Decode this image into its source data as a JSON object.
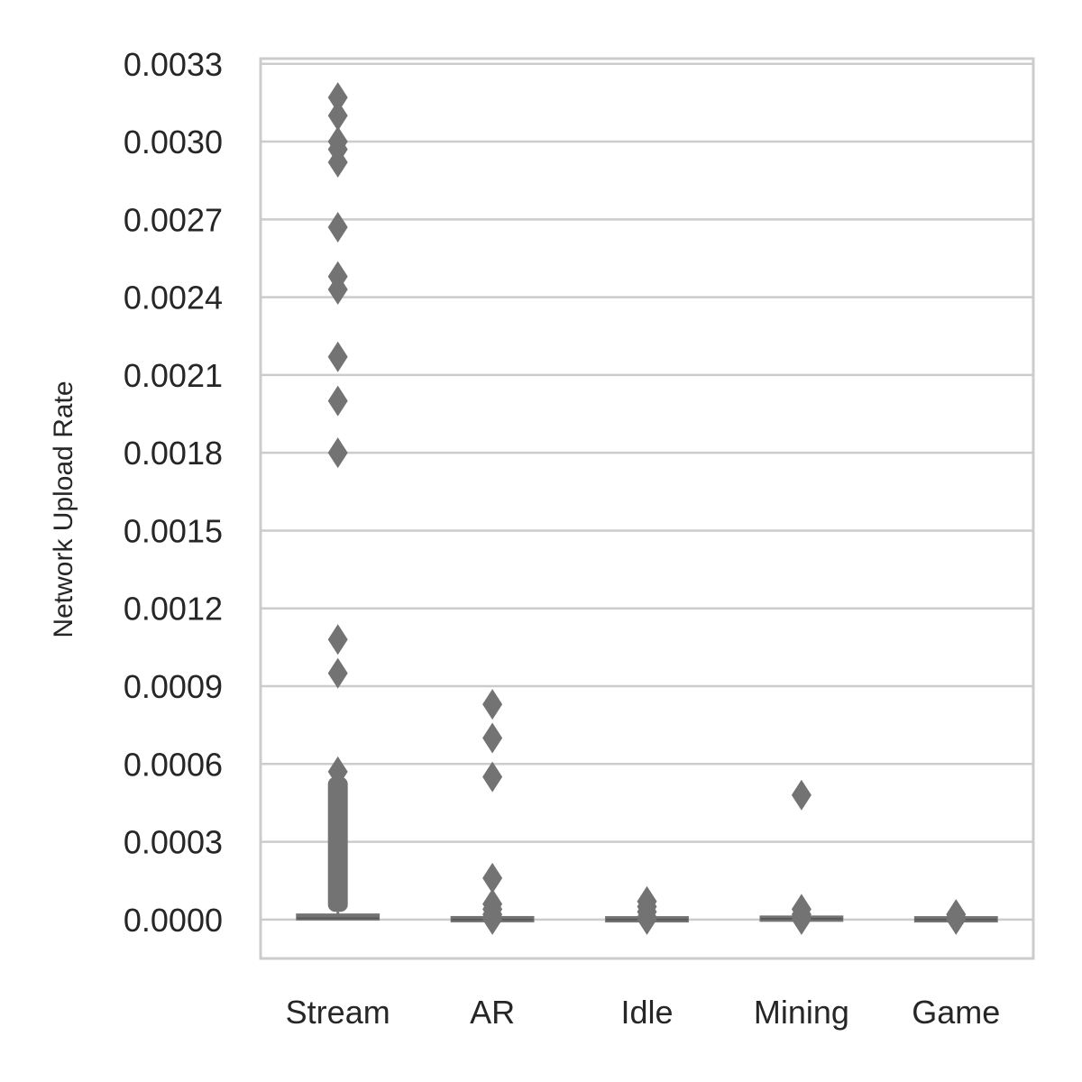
{
  "chart_data": {
    "type": "box",
    "title": "",
    "xlabel": "",
    "ylabel": "Network Upload Rate",
    "ylim": [
      -0.00015,
      0.00332
    ],
    "yticks": [
      0.0,
      0.0003,
      0.0006,
      0.0009,
      0.0012,
      0.0015,
      0.0018,
      0.0021,
      0.0024,
      0.0027,
      0.003,
      0.0033
    ],
    "ytick_labels": [
      "0.0000",
      "0.0003",
      "0.0006",
      "0.0009",
      "0.0012",
      "0.0015",
      "0.0018",
      "0.0021",
      "0.0024",
      "0.0027",
      "0.0030",
      "0.0033"
    ],
    "grid": true,
    "colors": {
      "box": "#737373",
      "grid": "#cccccc",
      "frame": "#cccccc"
    },
    "categories": [
      "Stream",
      "AR",
      "Idle",
      "Mining",
      "Game"
    ],
    "boxes": [
      {
        "category": "Stream",
        "q1": 0.0,
        "median": 5e-06,
        "q3": 2e-05,
        "whisker_low": 0.0,
        "whisker_high": 3e-05,
        "outliers": [
          0.00317,
          0.0031,
          0.003,
          0.00297,
          0.00292,
          0.00267,
          0.00248,
          0.00243,
          0.00217,
          0.002,
          0.0018,
          0.00108,
          0.00095,
          0.00057
        ],
        "dense_outlier_range": [
          3e-05,
          0.00055
        ]
      },
      {
        "category": "AR",
        "q1": 0.0,
        "median": 0.0,
        "q3": 3e-06,
        "whisker_low": 0.0,
        "whisker_high": 6e-06,
        "outliers": [
          0.00083,
          0.0007,
          0.00055,
          0.00016,
          6e-05,
          4e-05,
          2e-05,
          1e-05,
          0.0
        ]
      },
      {
        "category": "Idle",
        "q1": 0.0,
        "median": 0.0,
        "q3": 2e-06,
        "whisker_low": 0.0,
        "whisker_high": 4e-06,
        "outliers": [
          7e-05,
          5e-05,
          3e-05,
          1e-05,
          0.0
        ]
      },
      {
        "category": "Mining",
        "q1": 0.0,
        "median": 3e-06,
        "q3": 7e-06,
        "whisker_low": 0.0,
        "whisker_high": 1.2e-05,
        "outliers": [
          0.00048,
          4e-05,
          2e-05,
          1e-05,
          0.0
        ]
      },
      {
        "category": "Game",
        "q1": 0.0,
        "median": 0.0,
        "q3": 2e-06,
        "whisker_low": 0.0,
        "whisker_high": 3e-06,
        "outliers": [
          2e-05,
          1e-05,
          0.0
        ]
      }
    ]
  }
}
